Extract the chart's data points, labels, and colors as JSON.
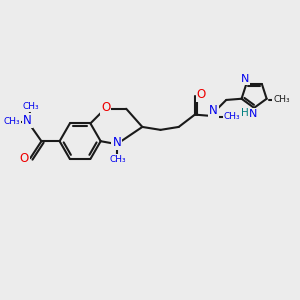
{
  "background_color": "#ececec",
  "bond_color": "#1a1a1a",
  "N_color": "#0000ee",
  "O_color": "#ee0000",
  "H_color": "#008080",
  "figsize": [
    3.0,
    3.0
  ],
  "dpi": 100,
  "xlim": [
    0,
    10
  ],
  "ylim": [
    0,
    10
  ]
}
